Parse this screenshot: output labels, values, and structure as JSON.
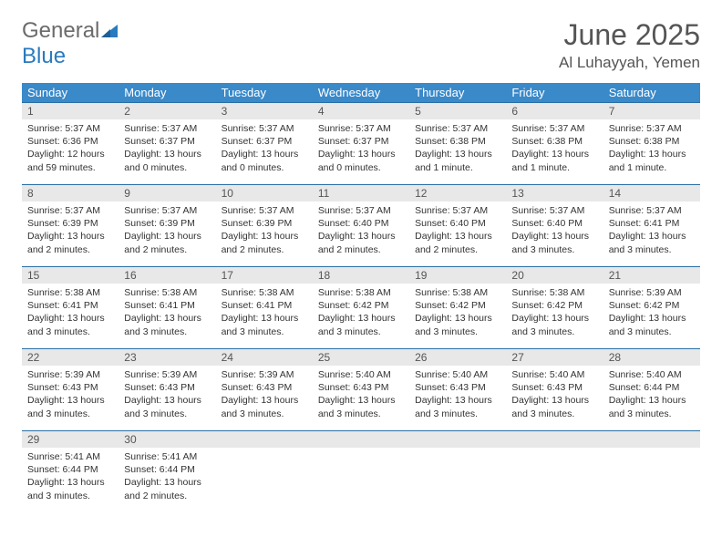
{
  "logo": {
    "word1": "General",
    "word2": "Blue",
    "color1": "#6b6b6b",
    "color2": "#2a7abf"
  },
  "title": "June 2025",
  "location": "Al Luhayyah, Yemen",
  "colors": {
    "header_bg": "#3a89c9",
    "header_text": "#ffffff",
    "daynum_bg": "#e8e8e8",
    "border": "#2a6fa3",
    "body_text": "#333333"
  },
  "day_names": [
    "Sunday",
    "Monday",
    "Tuesday",
    "Wednesday",
    "Thursday",
    "Friday",
    "Saturday"
  ],
  "weeks": [
    [
      {
        "n": "1",
        "sr": "Sunrise: 5:37 AM",
        "ss": "Sunset: 6:36 PM",
        "d1": "Daylight: 12 hours",
        "d2": "and 59 minutes."
      },
      {
        "n": "2",
        "sr": "Sunrise: 5:37 AM",
        "ss": "Sunset: 6:37 PM",
        "d1": "Daylight: 13 hours",
        "d2": "and 0 minutes."
      },
      {
        "n": "3",
        "sr": "Sunrise: 5:37 AM",
        "ss": "Sunset: 6:37 PM",
        "d1": "Daylight: 13 hours",
        "d2": "and 0 minutes."
      },
      {
        "n": "4",
        "sr": "Sunrise: 5:37 AM",
        "ss": "Sunset: 6:37 PM",
        "d1": "Daylight: 13 hours",
        "d2": "and 0 minutes."
      },
      {
        "n": "5",
        "sr": "Sunrise: 5:37 AM",
        "ss": "Sunset: 6:38 PM",
        "d1": "Daylight: 13 hours",
        "d2": "and 1 minute."
      },
      {
        "n": "6",
        "sr": "Sunrise: 5:37 AM",
        "ss": "Sunset: 6:38 PM",
        "d1": "Daylight: 13 hours",
        "d2": "and 1 minute."
      },
      {
        "n": "7",
        "sr": "Sunrise: 5:37 AM",
        "ss": "Sunset: 6:38 PM",
        "d1": "Daylight: 13 hours",
        "d2": "and 1 minute."
      }
    ],
    [
      {
        "n": "8",
        "sr": "Sunrise: 5:37 AM",
        "ss": "Sunset: 6:39 PM",
        "d1": "Daylight: 13 hours",
        "d2": "and 2 minutes."
      },
      {
        "n": "9",
        "sr": "Sunrise: 5:37 AM",
        "ss": "Sunset: 6:39 PM",
        "d1": "Daylight: 13 hours",
        "d2": "and 2 minutes."
      },
      {
        "n": "10",
        "sr": "Sunrise: 5:37 AM",
        "ss": "Sunset: 6:39 PM",
        "d1": "Daylight: 13 hours",
        "d2": "and 2 minutes."
      },
      {
        "n": "11",
        "sr": "Sunrise: 5:37 AM",
        "ss": "Sunset: 6:40 PM",
        "d1": "Daylight: 13 hours",
        "d2": "and 2 minutes."
      },
      {
        "n": "12",
        "sr": "Sunrise: 5:37 AM",
        "ss": "Sunset: 6:40 PM",
        "d1": "Daylight: 13 hours",
        "d2": "and 2 minutes."
      },
      {
        "n": "13",
        "sr": "Sunrise: 5:37 AM",
        "ss": "Sunset: 6:40 PM",
        "d1": "Daylight: 13 hours",
        "d2": "and 3 minutes."
      },
      {
        "n": "14",
        "sr": "Sunrise: 5:37 AM",
        "ss": "Sunset: 6:41 PM",
        "d1": "Daylight: 13 hours",
        "d2": "and 3 minutes."
      }
    ],
    [
      {
        "n": "15",
        "sr": "Sunrise: 5:38 AM",
        "ss": "Sunset: 6:41 PM",
        "d1": "Daylight: 13 hours",
        "d2": "and 3 minutes."
      },
      {
        "n": "16",
        "sr": "Sunrise: 5:38 AM",
        "ss": "Sunset: 6:41 PM",
        "d1": "Daylight: 13 hours",
        "d2": "and 3 minutes."
      },
      {
        "n": "17",
        "sr": "Sunrise: 5:38 AM",
        "ss": "Sunset: 6:41 PM",
        "d1": "Daylight: 13 hours",
        "d2": "and 3 minutes."
      },
      {
        "n": "18",
        "sr": "Sunrise: 5:38 AM",
        "ss": "Sunset: 6:42 PM",
        "d1": "Daylight: 13 hours",
        "d2": "and 3 minutes."
      },
      {
        "n": "19",
        "sr": "Sunrise: 5:38 AM",
        "ss": "Sunset: 6:42 PM",
        "d1": "Daylight: 13 hours",
        "d2": "and 3 minutes."
      },
      {
        "n": "20",
        "sr": "Sunrise: 5:38 AM",
        "ss": "Sunset: 6:42 PM",
        "d1": "Daylight: 13 hours",
        "d2": "and 3 minutes."
      },
      {
        "n": "21",
        "sr": "Sunrise: 5:39 AM",
        "ss": "Sunset: 6:42 PM",
        "d1": "Daylight: 13 hours",
        "d2": "and 3 minutes."
      }
    ],
    [
      {
        "n": "22",
        "sr": "Sunrise: 5:39 AM",
        "ss": "Sunset: 6:43 PM",
        "d1": "Daylight: 13 hours",
        "d2": "and 3 minutes."
      },
      {
        "n": "23",
        "sr": "Sunrise: 5:39 AM",
        "ss": "Sunset: 6:43 PM",
        "d1": "Daylight: 13 hours",
        "d2": "and 3 minutes."
      },
      {
        "n": "24",
        "sr": "Sunrise: 5:39 AM",
        "ss": "Sunset: 6:43 PM",
        "d1": "Daylight: 13 hours",
        "d2": "and 3 minutes."
      },
      {
        "n": "25",
        "sr": "Sunrise: 5:40 AM",
        "ss": "Sunset: 6:43 PM",
        "d1": "Daylight: 13 hours",
        "d2": "and 3 minutes."
      },
      {
        "n": "26",
        "sr": "Sunrise: 5:40 AM",
        "ss": "Sunset: 6:43 PM",
        "d1": "Daylight: 13 hours",
        "d2": "and 3 minutes."
      },
      {
        "n": "27",
        "sr": "Sunrise: 5:40 AM",
        "ss": "Sunset: 6:43 PM",
        "d1": "Daylight: 13 hours",
        "d2": "and 3 minutes."
      },
      {
        "n": "28",
        "sr": "Sunrise: 5:40 AM",
        "ss": "Sunset: 6:44 PM",
        "d1": "Daylight: 13 hours",
        "d2": "and 3 minutes."
      }
    ],
    [
      {
        "n": "29",
        "sr": "Sunrise: 5:41 AM",
        "ss": "Sunset: 6:44 PM",
        "d1": "Daylight: 13 hours",
        "d2": "and 3 minutes."
      },
      {
        "n": "30",
        "sr": "Sunrise: 5:41 AM",
        "ss": "Sunset: 6:44 PM",
        "d1": "Daylight: 13 hours",
        "d2": "and 2 minutes."
      },
      null,
      null,
      null,
      null,
      null
    ]
  ]
}
